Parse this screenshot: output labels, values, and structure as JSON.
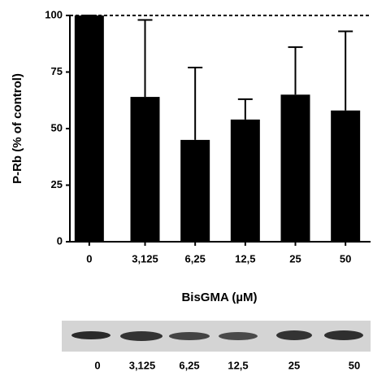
{
  "chart_data": {
    "type": "bar",
    "y_label": "P-Rb (% of control)",
    "x_label": "BisGMA (µM)",
    "categories": [
      "0",
      "3,125",
      "6,25",
      "12,5",
      "25",
      "50"
    ],
    "values": [
      100,
      64,
      45,
      54,
      65,
      58
    ],
    "errors": [
      0,
      34,
      32,
      9,
      21,
      35
    ],
    "color": "#000000",
    "ylim": [
      0,
      100
    ],
    "yticks": [
      0,
      25,
      50,
      75,
      100
    ],
    "reference_line": 100,
    "grid": false
  }
}
